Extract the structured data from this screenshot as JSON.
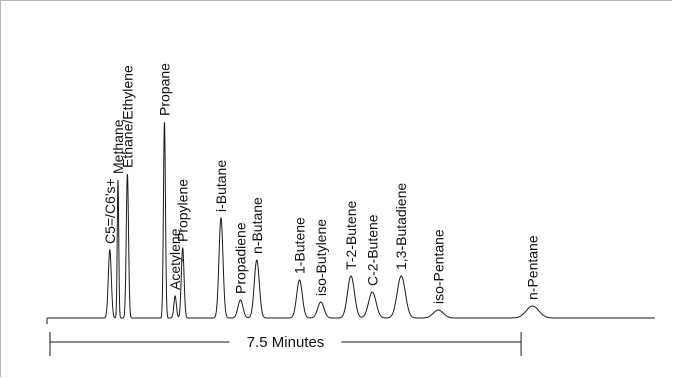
{
  "chart_data": {
    "type": "line",
    "title": "",
    "xlabel": "",
    "ylabel": "",
    "scale_bar": {
      "label": "7.5 Minutes",
      "minutes": 7.5
    },
    "xlim": [
      0,
      9.68
    ],
    "ylim": [
      0,
      1
    ],
    "grid": false,
    "baseline_color": "#1a1a1a",
    "peaks": [
      {
        "name": "C5=/C6's+",
        "time": 1.0,
        "height": 0.34,
        "width": 0.024
      },
      {
        "name": "Methane",
        "time": 1.13,
        "height": 0.69,
        "width": 0.012
      },
      {
        "name": "Ethane/Ethylene",
        "time": 1.28,
        "height": 0.72,
        "width": 0.018
      },
      {
        "name": "Propane",
        "time": 1.87,
        "height": 0.98,
        "width": 0.016
      },
      {
        "name": "Acetylene",
        "time": 2.04,
        "height": 0.11,
        "width": 0.02
      },
      {
        "name": "Propylene",
        "time": 2.16,
        "height": 0.35,
        "width": 0.022
      },
      {
        "name": "i-Butane",
        "time": 2.77,
        "height": 0.5,
        "width": 0.032
      },
      {
        "name": "Propadiene",
        "time": 3.08,
        "height": 0.09,
        "width": 0.04
      },
      {
        "name": "n-Butane",
        "time": 3.34,
        "height": 0.29,
        "width": 0.04
      },
      {
        "name": "1-Butene",
        "time": 4.02,
        "height": 0.19,
        "width": 0.045
      },
      {
        "name": "iso-Butylene",
        "time": 4.36,
        "height": 0.08,
        "width": 0.05
      },
      {
        "name": "T-2-Butene",
        "time": 4.84,
        "height": 0.21,
        "width": 0.055
      },
      {
        "name": "C-2-Butene",
        "time": 5.18,
        "height": 0.13,
        "width": 0.06
      },
      {
        "name": "1,3-Butadiene",
        "time": 5.64,
        "height": 0.21,
        "width": 0.065
      },
      {
        "name": "iso-Pentane",
        "time": 6.23,
        "height": 0.04,
        "width": 0.08
      },
      {
        "name": "n-Pentane",
        "time": 7.73,
        "height": 0.06,
        "width": 0.1
      }
    ]
  }
}
